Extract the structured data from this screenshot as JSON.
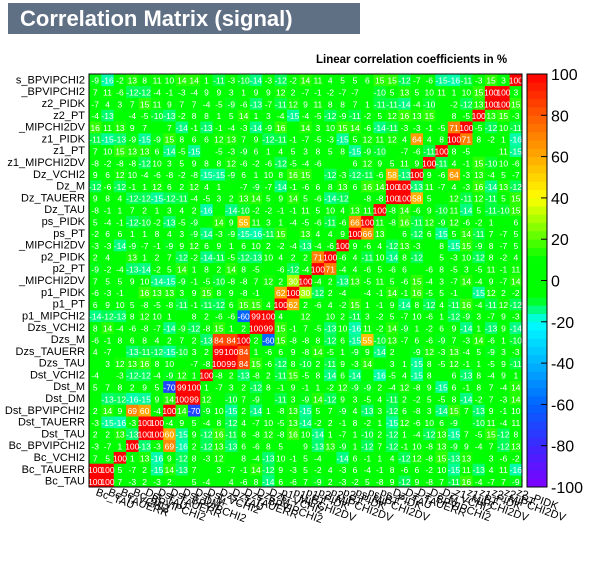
{
  "header": {
    "title": "Correlation Matrix (signal)",
    "subtitle": "Linear correlation coefficients in %"
  },
  "chart_data": {
    "type": "heatmap",
    "variables": [
      "Bc_TAU",
      "Bc_TAUERR",
      "Bc_VCHI2",
      "Bc_BPVIPCHI2",
      "Dst_TAU",
      "Dst_TAUERR",
      "Dst_BPVIPCHI2",
      "Dst_DM",
      "Dst_M",
      "Dst_VCHI2",
      "Dzs_TAU",
      "Dzs_TAUERR",
      "Dzs_BPVIPCHI2",
      "Dzs_M",
      "Dzs_VCHI2",
      "p1_MIPCHI2DV",
      "p1_PT",
      "p1_PIDK",
      "p2_MIPCHI2DV",
      "p2_PT",
      "p2_PIDK",
      "ps_MIPCHI2DV",
      "ps_PT",
      "ps_PIDK",
      "Dz_TAU",
      "Dz_TAUERR",
      "Dz_BPVIPCHI2",
      "Dz_M",
      "Dz_VCHI2",
      "z1_MIPCHI2DV",
      "z1_PT",
      "z1_PIDK",
      "z2_MIPCHI2DV",
      "z2_PT",
      "z2_PIDK"
    ],
    "y_labels_visible": [
      "Bc_TAU",
      "Bc_TAUERR",
      "Bc_VCHI2",
      "Bc_BPVIPCHI2",
      "Dst_TAU",
      "Dst_TAUERR",
      "Dst_BPVIPCHI2",
      "Dst_DM",
      "Dst_M",
      "Dst_VCHI2",
      "Dzs_TAU",
      "Dzs_TAUERR",
      "Dzs_M",
      "Dzs_VCHI2",
      "p1_MIPCHI2",
      "p1_PT",
      "p1_PIDK",
      "_MIPCHI2DV",
      "p2_PT",
      "p2_PIDK",
      "_MIPCHI2DV",
      "ps_PT",
      "ps_PIDK",
      "Dz_TAU",
      "Dz_TAUERR",
      "Dz_M",
      "Dz_VCHI2",
      "z1_MIPCHI2DV",
      "z1_PT",
      "z1_PIDK",
      "_MIPCHI2DV",
      "z2_PT",
      "z2_PIDK",
      "_BPVIPCHI2",
      "s_BPVIPCHI2"
    ],
    "x_labels_visible": [
      "Bc_TAU",
      "Bc_TAUERR",
      "Bc_VCHI2",
      "Bc_BPVIPCHI2",
      "Dst_TAU",
      "Dst_TAUERR",
      "Dst_BPVIPCHI2",
      "Dst_DM",
      "Dst_M",
      "Dst_VCHI2",
      "Dzs_TAU",
      "Dzs_TAUERR",
      "Dzs_BPVIPCHI2",
      "Dzs_M",
      "Dzs_VCHI2",
      "p1_MIPCHI2DV",
      "p1_PT",
      "p1_PIDK",
      "p2_MIPCHI2DV",
      "p2_PT",
      "p2_PIDK",
      "ps_MIPCHI2DV",
      "ps_PT",
      "ps_PIDK",
      "Dz_TAU",
      "Dz_TAUERR",
      "Dz_BPVIPCHI2",
      "Dz_M",
      "Dz_VCHI2",
      "z1_MIPCHI2DV",
      "z1_PT",
      "z1_PIDK",
      "z2_MIPCHI2DV",
      "z2_PT",
      "z2_PIDK"
    ],
    "zlim": [
      -100,
      100
    ],
    "colorbar_ticks": [
      100,
      80,
      60,
      40,
      20,
      0,
      -20,
      -40,
      -60,
      -80,
      -100
    ],
    "colorscale": [
      "#8000ff",
      "#3030ff",
      "#0090ff",
      "#00ffff",
      "#00ff00",
      "#00ff00",
      "#ffff00",
      "#ffa000",
      "#ff5000",
      "#ff0000"
    ],
    "strong_correlations": [
      {
        "a": 0,
        "b": 1,
        "value": 100
      },
      {
        "a": 4,
        "b": 5,
        "value": 100
      },
      {
        "a": 4,
        "b": 6,
        "value": 60
      },
      {
        "a": 7,
        "b": 8,
        "value": 99
      },
      {
        "a": 10,
        "b": 11,
        "value": 99
      },
      {
        "a": 10,
        "b": 12,
        "value": 84
      },
      {
        "a": 11,
        "b": 12,
        "value": 84
      },
      {
        "a": 15,
        "b": 16,
        "value": 62
      },
      {
        "a": 16,
        "b": 17,
        "value": 30
      },
      {
        "a": 18,
        "b": 19,
        "value": 71
      },
      {
        "a": 21,
        "b": 22,
        "value": 66
      },
      {
        "a": 24,
        "b": 25,
        "value": 100
      },
      {
        "a": 24,
        "b": 26,
        "value": 58
      },
      {
        "a": 29,
        "b": 30,
        "value": 71
      },
      {
        "a": 32,
        "b": 33,
        "value": 100
      },
      {
        "a": 3,
        "b": 6,
        "value": 69
      },
      {
        "a": 6,
        "b": 8,
        "value": -70
      },
      {
        "a": 12,
        "b": 14,
        "value": -60
      },
      {
        "a": 13,
        "b": 14,
        "value": 99
      },
      {
        "a": 26,
        "b": 29,
        "value": 64
      },
      {
        "a": 12,
        "b": 22,
        "value": 55
      }
    ]
  }
}
